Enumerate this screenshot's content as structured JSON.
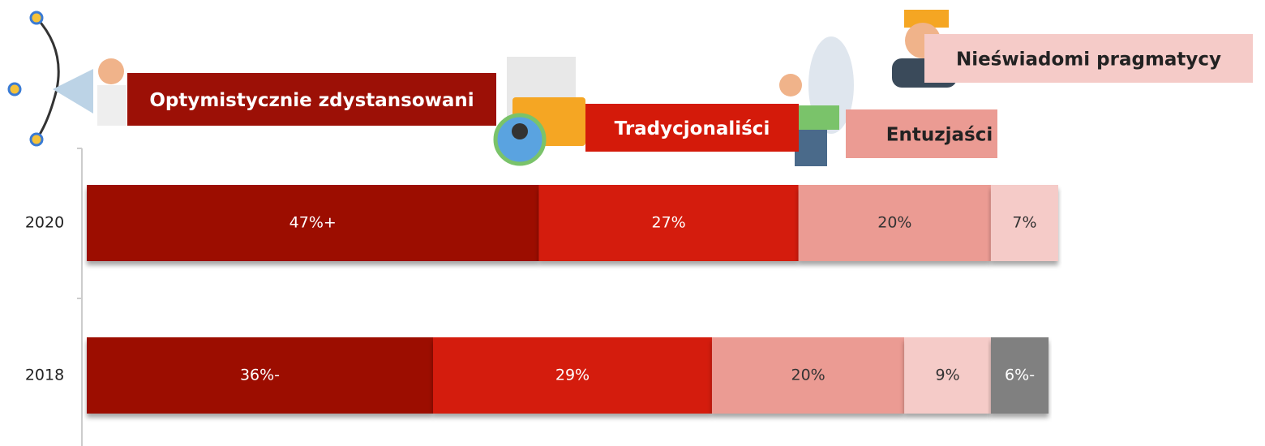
{
  "chart_data": {
    "type": "stacked-bar-horizontal",
    "categories": [
      "2020",
      "2018"
    ],
    "series": [
      {
        "name": "Optymistycznie zdystansowani",
        "color": "#9c1006",
        "values": [
          47,
          36
        ],
        "value_labels": [
          "47%+",
          "36%-"
        ]
      },
      {
        "name": "Tradycjonaliści",
        "color": "#d41a0a",
        "values": [
          27,
          29
        ],
        "value_labels": [
          "27%",
          "29%"
        ]
      },
      {
        "name": "Entuzjaści",
        "color": "#eb9b93",
        "values": [
          20,
          20
        ],
        "value_labels": [
          "20%",
          "20%"
        ]
      },
      {
        "name": "Nieświadomi pragmatycy",
        "color": "#f5cbc8",
        "values": [
          7,
          9
        ],
        "value_labels": [
          "7%",
          "9%"
        ]
      },
      {
        "color": "#808080",
        "values": [
          null,
          6
        ],
        "value_labels": [
          null,
          "6%-"
        ]
      }
    ],
    "xlim": [
      0,
      101
    ]
  }
}
